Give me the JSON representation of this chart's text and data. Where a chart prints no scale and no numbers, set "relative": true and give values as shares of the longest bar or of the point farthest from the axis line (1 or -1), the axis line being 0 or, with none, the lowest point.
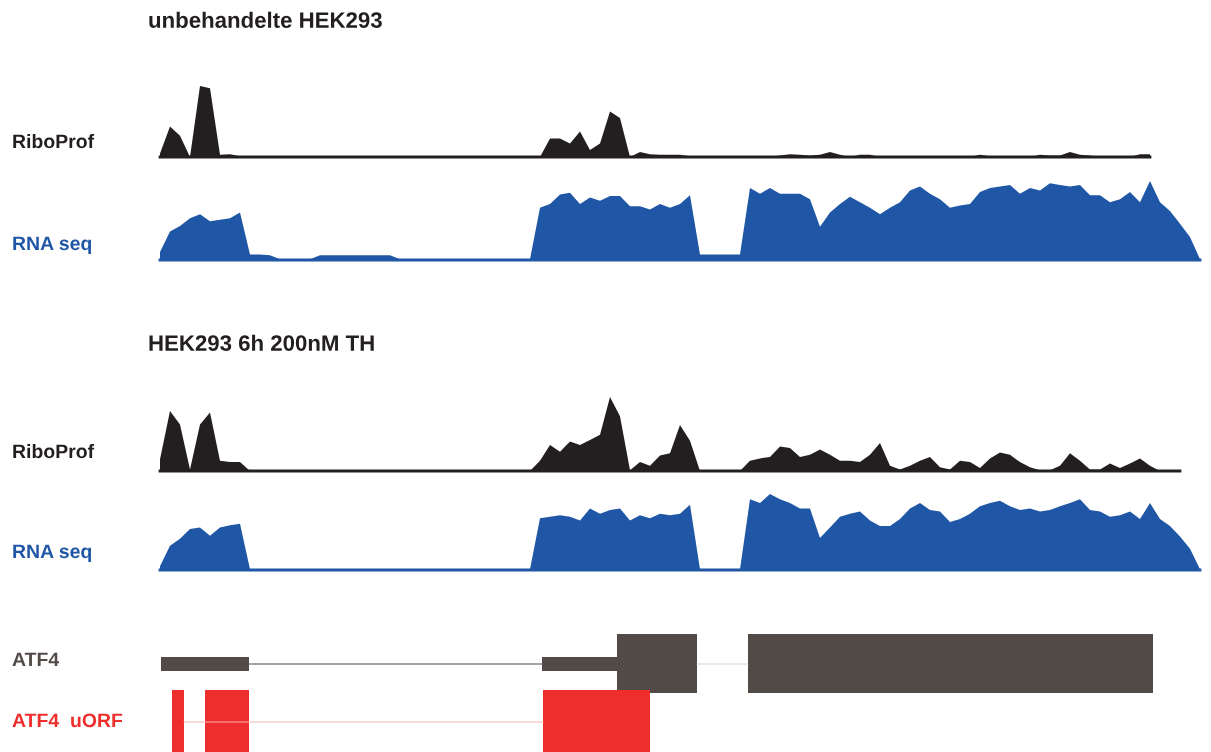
{
  "chart_data": [
    {
      "type": "area",
      "title": "unbehandelte HEK293",
      "ylabel": "RiboProf",
      "relative": true,
      "categories": [
        null,
        null,
        null,
        null,
        null,
        null,
        null,
        null,
        null,
        null,
        null,
        null,
        null,
        null,
        null,
        null,
        null,
        null,
        null,
        null,
        null,
        null,
        null,
        null,
        null,
        null,
        null,
        null,
        null,
        null,
        null,
        null,
        null,
        null,
        null,
        null,
        null,
        null,
        null,
        null,
        null,
        null,
        null,
        null,
        null,
        null,
        null,
        null,
        null,
        null,
        null,
        null,
        null,
        null,
        null,
        null,
        null,
        null,
        null,
        null,
        null,
        null,
        null,
        null,
        null,
        null,
        null,
        null,
        null,
        null,
        null,
        null,
        null,
        null,
        null,
        null,
        null,
        null,
        null,
        null,
        null,
        null,
        null,
        null,
        null,
        null,
        null,
        null,
        null,
        null,
        null,
        null,
        null,
        null,
        null,
        null,
        null,
        null,
        null,
        null,
        null,
        null,
        null,
        null,
        null
      ],
      "series": [
        {
          "color": "#231f20",
          "values": [
            0.05,
            0.43,
            0.3,
            0,
            1,
            0.97,
            0.03,
            0.04,
            0.01,
            0,
            0,
            0,
            0,
            0,
            0,
            0,
            0,
            0,
            0,
            0,
            0,
            0,
            0,
            0,
            0,
            0,
            0,
            0,
            0,
            0,
            0,
            0,
            0,
            0,
            0,
            0,
            0,
            0,
            0,
            0.26,
            0.26,
            0.19,
            0.36,
            0.1,
            0.19,
            0.64,
            0.55,
            0,
            0.07,
            0.04,
            0.03,
            0.03,
            0.03,
            0.01,
            0,
            0,
            0,
            0,
            0,
            0,
            0,
            0,
            0.02,
            0.04,
            0.03,
            0.02,
            0.03,
            0.07,
            0.03,
            0,
            0.03,
            0.03,
            0,
            0,
            0,
            0,
            0,
            0,
            0,
            0,
            0,
            0,
            0.03,
            0.01,
            0,
            0,
            0,
            0,
            0.03,
            0.02,
            0.02,
            0.07,
            0.03,
            0.02,
            0,
            0,
            0,
            0,
            0.04,
            0.04,
            null,
            null,
            null,
            null,
            null
          ]
        }
      ]
    },
    {
      "type": "area",
      "ylabel": "RNA seq",
      "relative": true,
      "categories": [
        null,
        null,
        null,
        null,
        null,
        null,
        null,
        null,
        null,
        null,
        null,
        null,
        null,
        null,
        null,
        null,
        null,
        null,
        null,
        null,
        null,
        null,
        null,
        null,
        null,
        null,
        null,
        null,
        null,
        null,
        null,
        null,
        null,
        null,
        null,
        null,
        null,
        null,
        null,
        null,
        null,
        null,
        null,
        null,
        null,
        null,
        null,
        null,
        null,
        null,
        null,
        null,
        null,
        null,
        null,
        null,
        null,
        null,
        null,
        null,
        null,
        null,
        null,
        null,
        null,
        null,
        null,
        null,
        null,
        null,
        null,
        null,
        null,
        null,
        null,
        null,
        null,
        null,
        null,
        null,
        null,
        null,
        null,
        null,
        null,
        null,
        null,
        null,
        null,
        null,
        null,
        null,
        null,
        null,
        null,
        null,
        null,
        null,
        null,
        null,
        null,
        null,
        null,
        null,
        null
      ],
      "series": [
        {
          "color": "#1f56a5",
          "values": [
            0.1,
            0.36,
            0.43,
            0.53,
            0.58,
            0.49,
            0.51,
            0.53,
            0.6,
            0.07,
            0.07,
            0.06,
            0.01,
            0.01,
            0.01,
            0.01,
            0.06,
            0.06,
            0.06,
            0.06,
            0.06,
            0.06,
            0.06,
            0.06,
            0.01,
            0.01,
            0.01,
            0.01,
            0.01,
            0.01,
            0.01,
            0.01,
            0.01,
            0.01,
            0.01,
            0.01,
            0.01,
            0.01,
            0.66,
            0.71,
            0.83,
            0.85,
            0.71,
            0.79,
            0.75,
            0.81,
            0.81,
            0.68,
            0.68,
            0.64,
            0.71,
            0.66,
            0.71,
            0.82,
            0.07,
            0.07,
            0.07,
            0.07,
            0.07,
            0.91,
            0.84,
            0.91,
            0.84,
            0.84,
            0.84,
            0.77,
            0.42,
            0.6,
            0.71,
            0.8,
            0.73,
            0.66,
            0.58,
            0.66,
            0.73,
            0.88,
            0.93,
            0.84,
            0.77,
            0.66,
            0.69,
            0.71,
            0.86,
            0.91,
            0.93,
            0.95,
            0.84,
            0.91,
            0.88,
            0.97,
            0.95,
            0.93,
            0.95,
            0.82,
            0.82,
            0.73,
            0.77,
            0.86,
            0.73,
            1.0,
            0.73,
            0.62,
            0.46,
            0.29,
            0.01
          ]
        }
      ]
    },
    {
      "type": "area",
      "title": "HEK293 6h 200nM TH",
      "ylabel": "RiboProf",
      "relative": true,
      "categories": [
        null,
        null,
        null,
        null,
        null,
        null,
        null,
        null,
        null,
        null,
        null,
        null,
        null,
        null,
        null,
        null,
        null,
        null,
        null,
        null,
        null,
        null,
        null,
        null,
        null,
        null,
        null,
        null,
        null,
        null,
        null,
        null,
        null,
        null,
        null,
        null,
        null,
        null,
        null,
        null,
        null,
        null,
        null,
        null,
        null,
        null,
        null,
        null,
        null,
        null,
        null,
        null,
        null,
        null,
        null,
        null,
        null,
        null,
        null,
        null,
        null,
        null,
        null,
        null,
        null,
        null,
        null,
        null,
        null,
        null,
        null,
        null,
        null,
        null,
        null,
        null,
        null,
        null,
        null,
        null,
        null,
        null,
        null,
        null,
        null,
        null,
        null,
        null,
        null,
        null,
        null,
        null,
        null,
        null,
        null,
        null,
        null,
        null,
        null,
        null,
        null,
        null,
        null,
        null,
        null
      ],
      "series": [
        {
          "color": "#231f20",
          "values": [
            0.16,
            0.81,
            0.63,
            0.02,
            0.63,
            0.79,
            0.14,
            0.12,
            0.12,
            0,
            0,
            0,
            0,
            0,
            0,
            0,
            0,
            0,
            0,
            0,
            0,
            0,
            0,
            0,
            0,
            0,
            0,
            0,
            0,
            0,
            0,
            0,
            0,
            0,
            0,
            0,
            0,
            0,
            0.14,
            0.35,
            0.26,
            0.4,
            0.35,
            0.42,
            0.49,
            1.0,
            0.74,
            0.01,
            0.12,
            0.07,
            0.21,
            0.24,
            0.62,
            0.41,
            0,
            0,
            0,
            0,
            0,
            0.14,
            0.17,
            0.19,
            0.33,
            0.31,
            0.19,
            0.22,
            0.29,
            0.22,
            0.14,
            0.14,
            0.12,
            0.22,
            0.38,
            0.07,
            0.02,
            0.07,
            0.14,
            0.19,
            0.05,
            0.02,
            0.14,
            0.12,
            0.04,
            0.17,
            0.25,
            0.22,
            0.12,
            0.05,
            0.01,
            0.01,
            0.07,
            0.24,
            0.14,
            0.02,
            0.02,
            0.1,
            0.04,
            0.1,
            0.17,
            0.07,
            0,
            0,
            0,
            null,
            null
          ]
        }
      ]
    },
    {
      "type": "area",
      "ylabel": "RNA seq",
      "relative": true,
      "categories": [
        null,
        null,
        null,
        null,
        null,
        null,
        null,
        null,
        null,
        null,
        null,
        null,
        null,
        null,
        null,
        null,
        null,
        null,
        null,
        null,
        null,
        null,
        null,
        null,
        null,
        null,
        null,
        null,
        null,
        null,
        null,
        null,
        null,
        null,
        null,
        null,
        null,
        null,
        null,
        null,
        null,
        null,
        null,
        null,
        null,
        null,
        null,
        null,
        null,
        null,
        null,
        null,
        null,
        null,
        null,
        null,
        null,
        null,
        null,
        null,
        null,
        null,
        null,
        null,
        null,
        null,
        null,
        null,
        null,
        null,
        null,
        null,
        null,
        null,
        null,
        null,
        null,
        null,
        null,
        null,
        null,
        null,
        null,
        null,
        null,
        null,
        null,
        null,
        null,
        null,
        null,
        null,
        null,
        null,
        null,
        null,
        null,
        null,
        null,
        null,
        null,
        null,
        null,
        null,
        null
      ],
      "series": [
        {
          "color": "#1f56a5",
          "values": [
            0.05,
            0.32,
            0.41,
            0.54,
            0.56,
            0.45,
            0.56,
            0.59,
            0.61,
            0.01,
            0.01,
            0.01,
            0.01,
            0.01,
            0.01,
            0.01,
            0.01,
            0.01,
            0.01,
            0.01,
            0.01,
            0.01,
            0.01,
            0.01,
            0.01,
            0.01,
            0.01,
            0.01,
            0.01,
            0.01,
            0.01,
            0.01,
            0.01,
            0.01,
            0.01,
            0.01,
            0.01,
            0.01,
            0.68,
            0.7,
            0.72,
            0.7,
            0.65,
            0.81,
            0.74,
            0.79,
            0.81,
            0.65,
            0.72,
            0.68,
            0.74,
            0.72,
            0.74,
            0.86,
            0.01,
            0.01,
            0.01,
            0.01,
            0.01,
            0.93,
            0.88,
            1.0,
            0.93,
            0.88,
            0.81,
            0.81,
            0.42,
            0.56,
            0.7,
            0.74,
            0.77,
            0.65,
            0.58,
            0.58,
            0.67,
            0.81,
            0.88,
            0.79,
            0.77,
            0.63,
            0.67,
            0.74,
            0.84,
            0.88,
            0.91,
            0.84,
            0.79,
            0.81,
            0.77,
            0.79,
            0.84,
            0.88,
            0.93,
            0.79,
            0.77,
            0.7,
            0.72,
            0.77,
            0.67,
            0.88,
            0.67,
            0.58,
            0.44,
            0.28,
            0.01
          ]
        }
      ]
    },
    {
      "type": "other",
      "annotations": [
        "ATF4",
        "ATF4  uORF"
      ]
    }
  ]
}
